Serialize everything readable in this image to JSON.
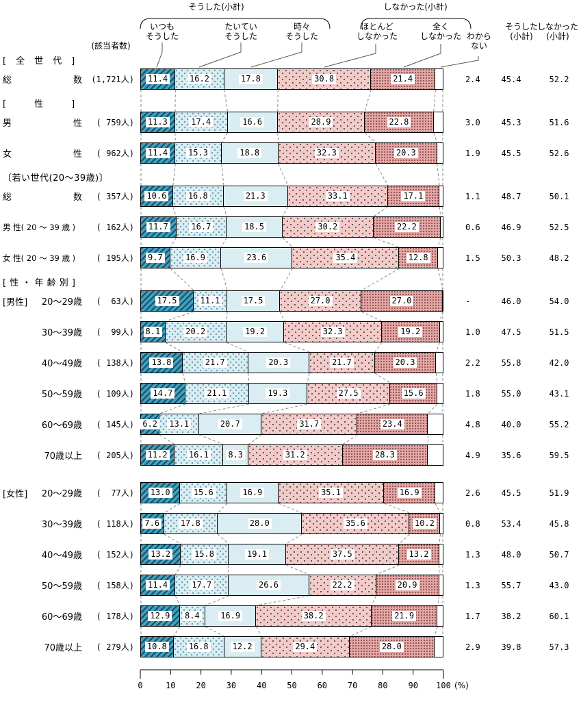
{
  "header": {
    "respondents_label": "(該当者数)",
    "group_did": "そうした(小計)",
    "group_didnt": "しなかった(小計)",
    "seg_labels": [
      [
        "いつも",
        "そうした"
      ],
      [
        "たいてい",
        "そうした"
      ],
      [
        "時々",
        "そうした"
      ],
      [
        "ほとんど",
        "しなかった"
      ],
      [
        "全く",
        "しなかった"
      ]
    ],
    "dk_label": [
      "わから",
      "ない"
    ],
    "col_did": [
      "そうした",
      "(小計)"
    ],
    "col_didnt": [
      "しなかった",
      "(小計)"
    ]
  },
  "axis": {
    "ticks": [
      "0",
      "10",
      "20",
      "30",
      "40",
      "50",
      "60",
      "70",
      "80",
      "90",
      "100"
    ],
    "unit": "(%)"
  },
  "chart_data": {
    "type": "bar",
    "stacked": true,
    "orientation": "horizontal",
    "unit": "%",
    "xlim": [
      0,
      100
    ],
    "x_ticks": [
      0,
      10,
      20,
      30,
      40,
      50,
      60,
      70,
      80,
      90,
      100
    ],
    "legend_entries": [
      "いつもそうした",
      "たいていそうした",
      "時々そうした",
      "ほとんどしなかった",
      "全くしなかった",
      "わからない"
    ],
    "columns": [
      "いつもそうした",
      "たいていそうした",
      "時々そうした",
      "ほとんどしなかった",
      "全くしなかった",
      "わからない",
      "そうした(小計)",
      "しなかった(小計)"
    ],
    "colors": {
      "always": "#43a0bb",
      "always_stripe": "#15506b",
      "usually": "#d9edf3",
      "usually_dot": "#66a0b4",
      "sometimes": "#d9edf3",
      "mostly_not": "#f2cac8",
      "mostly_not_dot": "#4a4a4a",
      "never": "#e2a7a5",
      "never_dot": "#8f4c4c",
      "dk": "#ffffff",
      "border": "#000000",
      "connector": "#8a8a8a"
    },
    "sections": [
      {
        "title": "[　全　世　代　]",
        "rows": [
          {
            "label": "総|数",
            "count": "(1,721人)",
            "values": [
              11.4,
              16.2,
              17.8,
              30.8,
              21.4
            ],
            "dk": "2.4",
            "did": "45.4",
            "didnt": "52.2"
          }
        ]
      },
      {
        "title": "[　　　性　　　]",
        "rows": [
          {
            "label": "男|性",
            "count": "( 759人)",
            "values": [
              11.3,
              17.4,
              16.6,
              28.9,
              22.8
            ],
            "dk": "3.0",
            "did": "45.3",
            "didnt": "51.6"
          },
          {
            "label": "女|性",
            "count": "( 962人)",
            "values": [
              11.4,
              15.3,
              18.8,
              32.3,
              20.3
            ],
            "dk": "1.9",
            "did": "45.5",
            "didnt": "52.6"
          }
        ]
      },
      {
        "title": "〔若い世代(20〜39歳)〕",
        "rows": [
          {
            "label": "総|数",
            "count": "( 357人)",
            "values": [
              10.6,
              16.8,
              21.3,
              33.1,
              17.1
            ],
            "dk": "1.1",
            "did": "48.7",
            "didnt": "50.1"
          },
          {
            "label": "男 性( 20 〜 39 歳 )",
            "count": "( 162人)",
            "values": [
              11.7,
              16.7,
              18.5,
              30.2,
              22.2
            ],
            "dk": "0.6",
            "did": "46.9",
            "didnt": "52.5"
          },
          {
            "label": "女 性( 20 〜 39 歳 )",
            "count": "( 195人)",
            "values": [
              9.7,
              16.9,
              23.6,
              35.4,
              12.8
            ],
            "dk": "1.5",
            "did": "50.3",
            "didnt": "48.2"
          }
        ]
      },
      {
        "title": "[ 性 ・ 年 齢 別 ]",
        "rows": [
          {
            "prefix": "[男性]",
            "label": "20〜29歳",
            "count": "(  63人)",
            "values": [
              17.5,
              11.1,
              17.5,
              27.0,
              27.0
            ],
            "dk": "-",
            "did": "46.0",
            "didnt": "54.0"
          },
          {
            "label": "30〜39歳",
            "count": "(  99人)",
            "values": [
              8.1,
              20.2,
              19.2,
              32.3,
              19.2
            ],
            "dk": "1.0",
            "did": "47.5",
            "didnt": "51.5"
          },
          {
            "label": "40〜49歳",
            "count": "( 138人)",
            "values": [
              13.8,
              21.7,
              20.3,
              21.7,
              20.3
            ],
            "dk": "2.2",
            "did": "55.8",
            "didnt": "42.0"
          },
          {
            "label": "50〜59歳",
            "count": "( 109人)",
            "values": [
              14.7,
              21.1,
              19.3,
              27.5,
              15.6
            ],
            "dk": "1.8",
            "did": "55.0",
            "didnt": "43.1"
          },
          {
            "label": "60〜69歳",
            "count": "( 145人)",
            "values": [
              6.2,
              13.1,
              20.7,
              31.7,
              23.4
            ],
            "dk": "4.8",
            "did": "40.0",
            "didnt": "55.2"
          },
          {
            "label": "70歳以上",
            "count": "( 205人)",
            "values": [
              11.2,
              16.1,
              8.3,
              31.2,
              28.3
            ],
            "dk": "4.9",
            "did": "35.6",
            "didnt": "59.5"
          },
          {
            "prefix": "[女性]",
            "label": "20〜29歳",
            "count": "(  77人)",
            "values": [
              13.0,
              15.6,
              16.9,
              35.1,
              16.9
            ],
            "dk": "2.6",
            "did": "45.5",
            "didnt": "51.9"
          },
          {
            "label": "30〜39歳",
            "count": "( 118人)",
            "values": [
              7.6,
              17.8,
              28.0,
              35.6,
              10.2
            ],
            "dk": "0.8",
            "did": "53.4",
            "didnt": "45.8"
          },
          {
            "label": "40〜49歳",
            "count": "( 152人)",
            "values": [
              13.2,
              15.8,
              19.1,
              37.5,
              13.2
            ],
            "dk": "1.3",
            "did": "48.0",
            "didnt": "50.7"
          },
          {
            "label": "50〜59歳",
            "count": "( 158人)",
            "values": [
              11.4,
              17.7,
              26.6,
              22.2,
              20.9
            ],
            "dk": "1.3",
            "did": "55.7",
            "didnt": "43.0"
          },
          {
            "label": "60〜69歳",
            "count": "( 178人)",
            "values": [
              12.9,
              8.4,
              16.9,
              38.2,
              21.9
            ],
            "dk": "1.7",
            "did": "38.2",
            "didnt": "60.1"
          },
          {
            "label": "70歳以上",
            "count": "( 279人)",
            "values": [
              10.8,
              16.8,
              12.2,
              29.4,
              28.0
            ],
            "dk": "2.9",
            "did": "39.8",
            "didnt": "57.3"
          }
        ]
      }
    ]
  }
}
